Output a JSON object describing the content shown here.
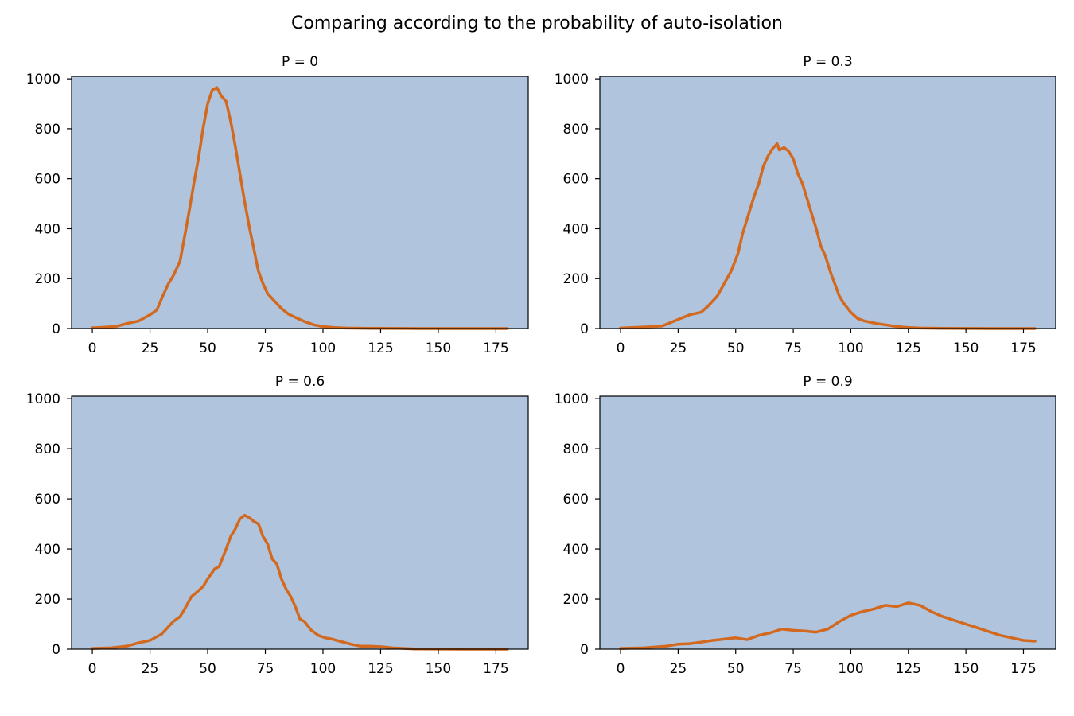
{
  "chart_data": {
    "title": "Comparing according to the probability of auto-isolation",
    "type": "line",
    "line_color": "#D2691E",
    "background_color": "#B0C4DE",
    "grid": false,
    "legend": false,
    "panels": [
      {
        "title": "P = 0",
        "xlim": [
          -9,
          189
        ],
        "ylim": [
          0,
          1010
        ],
        "xticks": [
          0,
          25,
          50,
          75,
          100,
          125,
          150,
          175
        ],
        "yticks": [
          0,
          200,
          400,
          600,
          800,
          1000
        ],
        "x": [
          0,
          5,
          10,
          15,
          20,
          25,
          28,
          30,
          33,
          35,
          38,
          40,
          42,
          44,
          46,
          48,
          50,
          52,
          54,
          56,
          58,
          60,
          62,
          64,
          66,
          68,
          70,
          72,
          74,
          76,
          78,
          80,
          82,
          85,
          88,
          92,
          96,
          100,
          105,
          110,
          120,
          140,
          160,
          180
        ],
        "y": [
          3,
          5,
          8,
          20,
          30,
          55,
          75,
          120,
          180,
          210,
          270,
          370,
          470,
          580,
          680,
          800,
          900,
          955,
          965,
          930,
          910,
          830,
          730,
          620,
          510,
          410,
          320,
          230,
          180,
          140,
          120,
          100,
          80,
          58,
          45,
          28,
          15,
          8,
          4,
          2,
          1,
          0,
          0,
          0
        ]
      },
      {
        "title": "P = 0.3",
        "xlim": [
          -9,
          189
        ],
        "ylim": [
          0,
          1010
        ],
        "xticks": [
          0,
          25,
          50,
          75,
          100,
          125,
          150,
          175
        ],
        "yticks": [
          0,
          200,
          400,
          600,
          800,
          1000
        ],
        "x": [
          0,
          10,
          18,
          22,
          26,
          30,
          35,
          38,
          42,
          45,
          48,
          51,
          53,
          55,
          58,
          60,
          62,
          64,
          66,
          68,
          69,
          71,
          73,
          75,
          77,
          79,
          81,
          83,
          85,
          87,
          89,
          91,
          93,
          95,
          97,
          100,
          103,
          106,
          110,
          115,
          120,
          125,
          130,
          140,
          160,
          180
        ],
        "y": [
          2,
          6,
          10,
          25,
          40,
          55,
          65,
          90,
          130,
          180,
          230,
          300,
          380,
          440,
          530,
          580,
          650,
          690,
          720,
          740,
          715,
          725,
          710,
          680,
          620,
          580,
          520,
          460,
          400,
          330,
          290,
          230,
          180,
          130,
          100,
          65,
          40,
          30,
          22,
          15,
          8,
          4,
          2,
          1,
          0,
          0
        ]
      },
      {
        "title": "P = 0.6",
        "xlim": [
          -9,
          189
        ],
        "ylim": [
          0,
          1010
        ],
        "xticks": [
          0,
          25,
          50,
          75,
          100,
          125,
          150,
          175
        ],
        "yticks": [
          0,
          200,
          400,
          600,
          800,
          1000
        ],
        "x": [
          0,
          8,
          15,
          20,
          25,
          30,
          33,
          35,
          38,
          40,
          43,
          45,
          48,
          50,
          53,
          55,
          58,
          60,
          62,
          64,
          66,
          68,
          70,
          72,
          74,
          76,
          78,
          80,
          82,
          84,
          86,
          88,
          90,
          92,
          95,
          98,
          101,
          104,
          108,
          112,
          116,
          120,
          125,
          130,
          140,
          160,
          180
        ],
        "y": [
          3,
          5,
          12,
          25,
          35,
          60,
          90,
          110,
          130,
          160,
          210,
          225,
          250,
          280,
          320,
          330,
          400,
          450,
          480,
          520,
          535,
          525,
          510,
          500,
          450,
          420,
          360,
          340,
          280,
          240,
          210,
          170,
          120,
          110,
          75,
          55,
          45,
          40,
          30,
          20,
          12,
          12,
          10,
          5,
          1,
          0,
          0
        ]
      },
      {
        "title": "P = 0.9",
        "xlim": [
          -9,
          189
        ],
        "ylim": [
          0,
          1010
        ],
        "xticks": [
          0,
          25,
          50,
          75,
          100,
          125,
          150,
          175
        ],
        "yticks": [
          0,
          200,
          400,
          600,
          800,
          1000
        ],
        "x": [
          0,
          10,
          20,
          25,
          30,
          35,
          40,
          45,
          50,
          55,
          60,
          65,
          70,
          75,
          80,
          85,
          90,
          95,
          100,
          105,
          110,
          115,
          120,
          125,
          130,
          135,
          140,
          145,
          150,
          155,
          160,
          165,
          170,
          175,
          180
        ],
        "y": [
          3,
          5,
          12,
          20,
          22,
          28,
          35,
          40,
          45,
          38,
          55,
          65,
          80,
          75,
          72,
          68,
          80,
          110,
          135,
          150,
          160,
          175,
          170,
          185,
          175,
          150,
          130,
          115,
          100,
          85,
          70,
          55,
          45,
          35,
          32
        ]
      }
    ]
  }
}
